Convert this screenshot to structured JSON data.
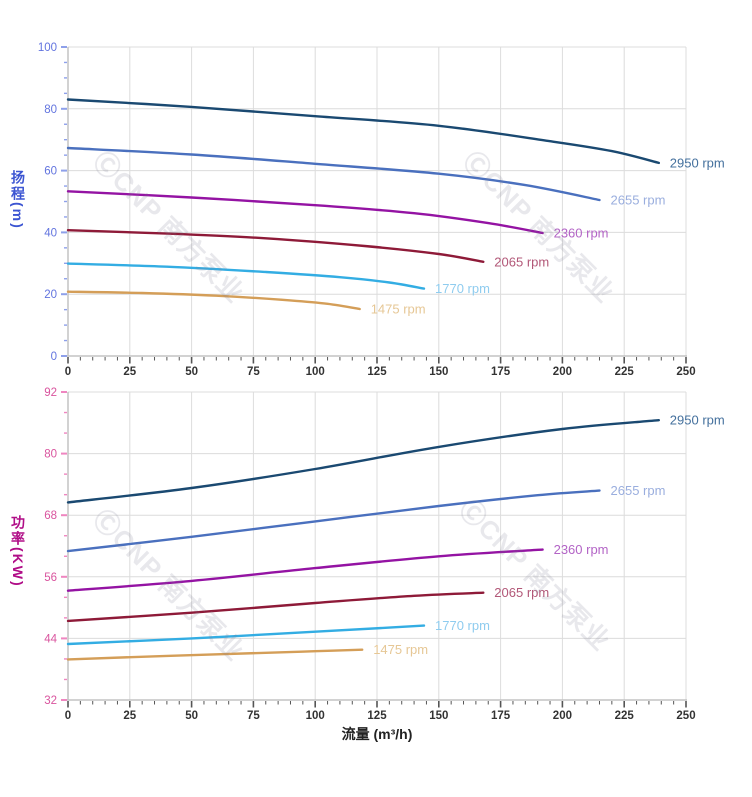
{
  "watermark": {
    "text": "ⒸCNP 南方泵业"
  },
  "x_axis": {
    "title_color": "#222222",
    "tick_label_color": "#333333",
    "tick_color": "#555555",
    "grid_color": "#dcdcdc",
    "axis_line_color": "#c4c4c4"
  },
  "chart_data": [
    {
      "type": "line",
      "id": "head-vs-flow",
      "title": "",
      "xlabel": "",
      "ylabel": "扬程(m)",
      "xlim": [
        0,
        250
      ],
      "ylim": [
        0,
        100
      ],
      "x_tick_step": 25,
      "x_minor_step": 5,
      "y_tick_step": 20,
      "y_minor_step": 5,
      "x_tick_labels": [
        "0",
        "25",
        "50",
        "75",
        "100",
        "125",
        "150",
        "175",
        "200",
        "225",
        "250"
      ],
      "y_tick_labels": [
        "0",
        "20",
        "40",
        "60",
        "80",
        "100"
      ],
      "grid": true,
      "legend_position": "end-of-line",
      "axis_colors": {
        "title": "#3c55d2",
        "tick_labels": "#6274df",
        "ticks": "#8ea0ea"
      },
      "series": [
        {
          "name": "2950 rpm",
          "color": "#1a4971",
          "label_color": "#44709d",
          "points": [
            [
              0,
              83
            ],
            [
              50,
              80.6
            ],
            [
              100,
              77.6
            ],
            [
              150,
              74.5
            ],
            [
              195,
              69.5
            ],
            [
              220,
              66.3
            ],
            [
              239,
              62.5
            ]
          ]
        },
        {
          "name": "2655 rpm",
          "color": "#4a70be",
          "label_color": "#9aaede",
          "points": [
            [
              0,
              67.3
            ],
            [
              50,
              65.2
            ],
            [
              100,
              62.2
            ],
            [
              150,
              59.0
            ],
            [
              185,
              55.3
            ],
            [
              215,
              50.5
            ]
          ]
        },
        {
          "name": "2360 rpm",
          "color": "#9413a3",
          "label_color": "#b364c6",
          "points": [
            [
              0,
              53.3
            ],
            [
              50,
              51.3
            ],
            [
              100,
              48.8
            ],
            [
              140,
              46.2
            ],
            [
              170,
              43.0
            ],
            [
              192,
              39.8
            ]
          ]
        },
        {
          "name": "2065 rpm",
          "color": "#8e1a38",
          "label_color": "#b25878",
          "points": [
            [
              0,
              40.7
            ],
            [
              40,
              39.6
            ],
            [
              80,
              38.1
            ],
            [
              120,
              35.6
            ],
            [
              150,
              33.0
            ],
            [
              168,
              30.5
            ]
          ]
        },
        {
          "name": "1770 rpm",
          "color": "#33ade3",
          "label_color": "#8fccef",
          "points": [
            [
              0,
              29.9
            ],
            [
              40,
              28.9
            ],
            [
              80,
              27.2
            ],
            [
              110,
              25.5
            ],
            [
              130,
              23.8
            ],
            [
              144,
              21.8
            ]
          ]
        },
        {
          "name": "1475 rpm",
          "color": "#d49e58",
          "label_color": "#e6c795",
          "points": [
            [
              0,
              20.8
            ],
            [
              30,
              20.4
            ],
            [
              60,
              19.5
            ],
            [
              90,
              18.0
            ],
            [
              105,
              16.9
            ],
            [
              118,
              15.2
            ]
          ]
        }
      ]
    },
    {
      "type": "line",
      "id": "power-vs-flow",
      "title": "",
      "xlabel": "流量 (m³/h)",
      "ylabel": "功率(KW)",
      "xlim": [
        0,
        250
      ],
      "ylim": [
        32,
        92
      ],
      "x_tick_step": 25,
      "x_minor_step": 5,
      "y_tick_step": 12,
      "y_minor_step": 4,
      "x_tick_labels": [
        "0",
        "25",
        "50",
        "75",
        "100",
        "125",
        "150",
        "175",
        "200",
        "225",
        "250"
      ],
      "y_tick_labels": [
        "32",
        "44",
        "56",
        "68",
        "80",
        "92"
      ],
      "grid": true,
      "legend_position": "end-of-line",
      "axis_colors": {
        "title": "#b00d87",
        "tick_labels": "#d9549e",
        "ticks": "#ef86c0"
      },
      "series": [
        {
          "name": "2950 rpm",
          "color": "#1a4971",
          "label_color": "#44709d",
          "points": [
            [
              0,
              70.5
            ],
            [
              50,
              73.3
            ],
            [
              100,
              77.0
            ],
            [
              150,
              81.3
            ],
            [
              200,
              84.8
            ],
            [
              239,
              86.5
            ]
          ]
        },
        {
          "name": "2655 rpm",
          "color": "#4a70be",
          "label_color": "#9aaede",
          "points": [
            [
              0,
              61.0
            ],
            [
              50,
              63.8
            ],
            [
              100,
              66.8
            ],
            [
              150,
              69.8
            ],
            [
              190,
              71.9
            ],
            [
              215,
              72.8
            ]
          ]
        },
        {
          "name": "2360 rpm",
          "color": "#9413a3",
          "label_color": "#b364c6",
          "points": [
            [
              0,
              53.3
            ],
            [
              50,
              55.2
            ],
            [
              100,
              57.7
            ],
            [
              150,
              60.0
            ],
            [
              192,
              61.3
            ]
          ]
        },
        {
          "name": "2065 rpm",
          "color": "#8e1a38",
          "label_color": "#b25878",
          "points": [
            [
              0,
              47.4
            ],
            [
              50,
              49.0
            ],
            [
              100,
              50.9
            ],
            [
              140,
              52.3
            ],
            [
              168,
              52.9
            ]
          ]
        },
        {
          "name": "1770 rpm",
          "color": "#33ade3",
          "label_color": "#8fccef",
          "points": [
            [
              0,
              42.9
            ],
            [
              50,
              44.0
            ],
            [
              100,
              45.3
            ],
            [
              130,
              46.1
            ],
            [
              144,
              46.5
            ]
          ]
        },
        {
          "name": "1475 rpm",
          "color": "#d49e58",
          "label_color": "#e6c795",
          "points": [
            [
              0,
              39.9
            ],
            [
              40,
              40.6
            ],
            [
              80,
              41.2
            ],
            [
              100,
              41.5
            ],
            [
              119,
              41.8
            ]
          ]
        }
      ]
    }
  ]
}
